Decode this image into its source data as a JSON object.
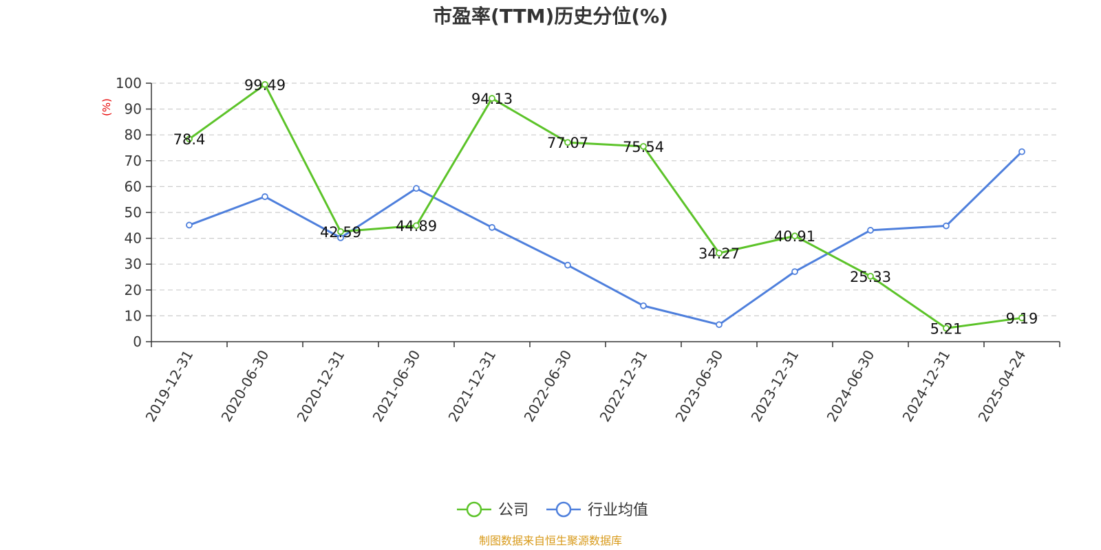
{
  "chart_data": {
    "type": "line",
    "title": "市盈率(TTM)历史分位(%)",
    "ylabel": "(%)",
    "ylim": [
      0,
      100
    ],
    "yticks": [
      "0",
      "10",
      "20",
      "30",
      "40",
      "50",
      "60",
      "70",
      "80",
      "90",
      "100"
    ],
    "categories": [
      "2019-12-31",
      "2020-06-30",
      "2020-12-31",
      "2021-06-30",
      "2021-12-31",
      "2022-06-30",
      "2022-12-31",
      "2023-06-30",
      "2023-12-31",
      "2024-06-30",
      "2024-12-31",
      "2025-04-24"
    ],
    "grid": true,
    "legend_position": "bottom-center",
    "series": [
      {
        "name": "公司",
        "color": "#5cc329",
        "values": [
          78.4,
          99.49,
          42.59,
          44.89,
          94.13,
          77.07,
          75.54,
          34.27,
          40.91,
          25.33,
          5.21,
          9.19
        ],
        "labels": [
          "78.4",
          "99.49",
          "42.59",
          "44.89",
          "94.13",
          "77.07",
          "75.54",
          "34.27",
          "40.91",
          "25.33",
          "5.21",
          "9.19"
        ]
      },
      {
        "name": "行业均值",
        "color": "#4e7fdc",
        "values": [
          45.1,
          56.1,
          40.2,
          59.3,
          44.2,
          29.6,
          13.9,
          6.6,
          27.1,
          43.1,
          44.8,
          73.5
        ]
      }
    ],
    "source": "制图数据来自恒生聚源数据库",
    "unit_color": "#e60000",
    "source_color": "#d89a1a"
  }
}
